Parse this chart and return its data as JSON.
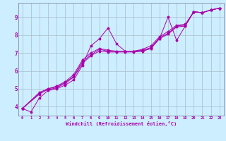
{
  "title": "",
  "xlabel": "Windchill (Refroidissement éolien,°C)",
  "ylabel": "",
  "bg_color": "#cceeff",
  "grid_color": "#aabbcc",
  "line_color": "#aa00aa",
  "xlim": [
    -0.5,
    23.5
  ],
  "ylim": [
    3.5,
    9.8
  ],
  "xticks": [
    0,
    1,
    2,
    3,
    4,
    5,
    6,
    7,
    8,
    9,
    10,
    11,
    12,
    13,
    14,
    15,
    16,
    17,
    18,
    19,
    20,
    21,
    22,
    23
  ],
  "yticks": [
    4,
    5,
    6,
    7,
    8,
    9
  ],
  "series1": [
    [
      0,
      3.9
    ],
    [
      1,
      3.7
    ],
    [
      2,
      4.5
    ],
    [
      3,
      4.9
    ],
    [
      4,
      5.0
    ],
    [
      5,
      5.2
    ],
    [
      6,
      5.5
    ],
    [
      7,
      6.3
    ],
    [
      8,
      7.4
    ],
    [
      9,
      7.8
    ],
    [
      10,
      8.4
    ],
    [
      11,
      7.5
    ],
    [
      12,
      7.1
    ],
    [
      13,
      7.1
    ],
    [
      14,
      7.1
    ],
    [
      15,
      7.25
    ],
    [
      16,
      7.8
    ],
    [
      17,
      9.0
    ],
    [
      18,
      7.7
    ],
    [
      19,
      8.5
    ],
    [
      20,
      9.3
    ],
    [
      21,
      9.25
    ],
    [
      22,
      9.4
    ],
    [
      23,
      9.5
    ]
  ],
  "series2": [
    [
      0,
      3.9
    ],
    [
      2,
      4.7
    ],
    [
      3,
      5.0
    ],
    [
      4,
      5.1
    ],
    [
      5,
      5.35
    ],
    [
      6,
      5.7
    ],
    [
      7,
      6.5
    ],
    [
      8,
      6.9
    ],
    [
      9,
      7.2
    ],
    [
      10,
      7.1
    ],
    [
      11,
      7.1
    ],
    [
      12,
      7.1
    ],
    [
      13,
      7.1
    ],
    [
      14,
      7.15
    ],
    [
      15,
      7.3
    ],
    [
      16,
      7.85
    ],
    [
      17,
      8.1
    ],
    [
      18,
      8.5
    ],
    [
      19,
      8.55
    ],
    [
      20,
      9.3
    ],
    [
      21,
      9.25
    ],
    [
      22,
      9.4
    ],
    [
      23,
      9.5
    ]
  ],
  "series3": [
    [
      0,
      3.9
    ],
    [
      2,
      4.8
    ],
    [
      3,
      5.0
    ],
    [
      4,
      5.15
    ],
    [
      5,
      5.4
    ],
    [
      6,
      5.8
    ],
    [
      7,
      6.6
    ],
    [
      8,
      7.0
    ],
    [
      9,
      7.25
    ],
    [
      10,
      7.15
    ],
    [
      11,
      7.1
    ],
    [
      12,
      7.1
    ],
    [
      13,
      7.1
    ],
    [
      14,
      7.2
    ],
    [
      15,
      7.4
    ],
    [
      16,
      7.9
    ],
    [
      17,
      8.2
    ],
    [
      18,
      8.55
    ],
    [
      19,
      8.6
    ],
    [
      20,
      9.3
    ],
    [
      21,
      9.25
    ],
    [
      22,
      9.4
    ],
    [
      23,
      9.5
    ]
  ],
  "series4": [
    [
      0,
      3.9
    ],
    [
      2,
      4.75
    ],
    [
      3,
      4.95
    ],
    [
      4,
      5.05
    ],
    [
      5,
      5.3
    ],
    [
      6,
      5.65
    ],
    [
      7,
      6.4
    ],
    [
      8,
      6.85
    ],
    [
      9,
      7.1
    ],
    [
      10,
      7.05
    ],
    [
      11,
      7.05
    ],
    [
      12,
      7.05
    ],
    [
      13,
      7.05
    ],
    [
      14,
      7.1
    ],
    [
      15,
      7.25
    ],
    [
      16,
      7.8
    ],
    [
      17,
      8.05
    ],
    [
      18,
      8.45
    ],
    [
      19,
      8.5
    ],
    [
      20,
      9.3
    ],
    [
      21,
      9.25
    ],
    [
      22,
      9.4
    ],
    [
      23,
      9.5
    ]
  ]
}
